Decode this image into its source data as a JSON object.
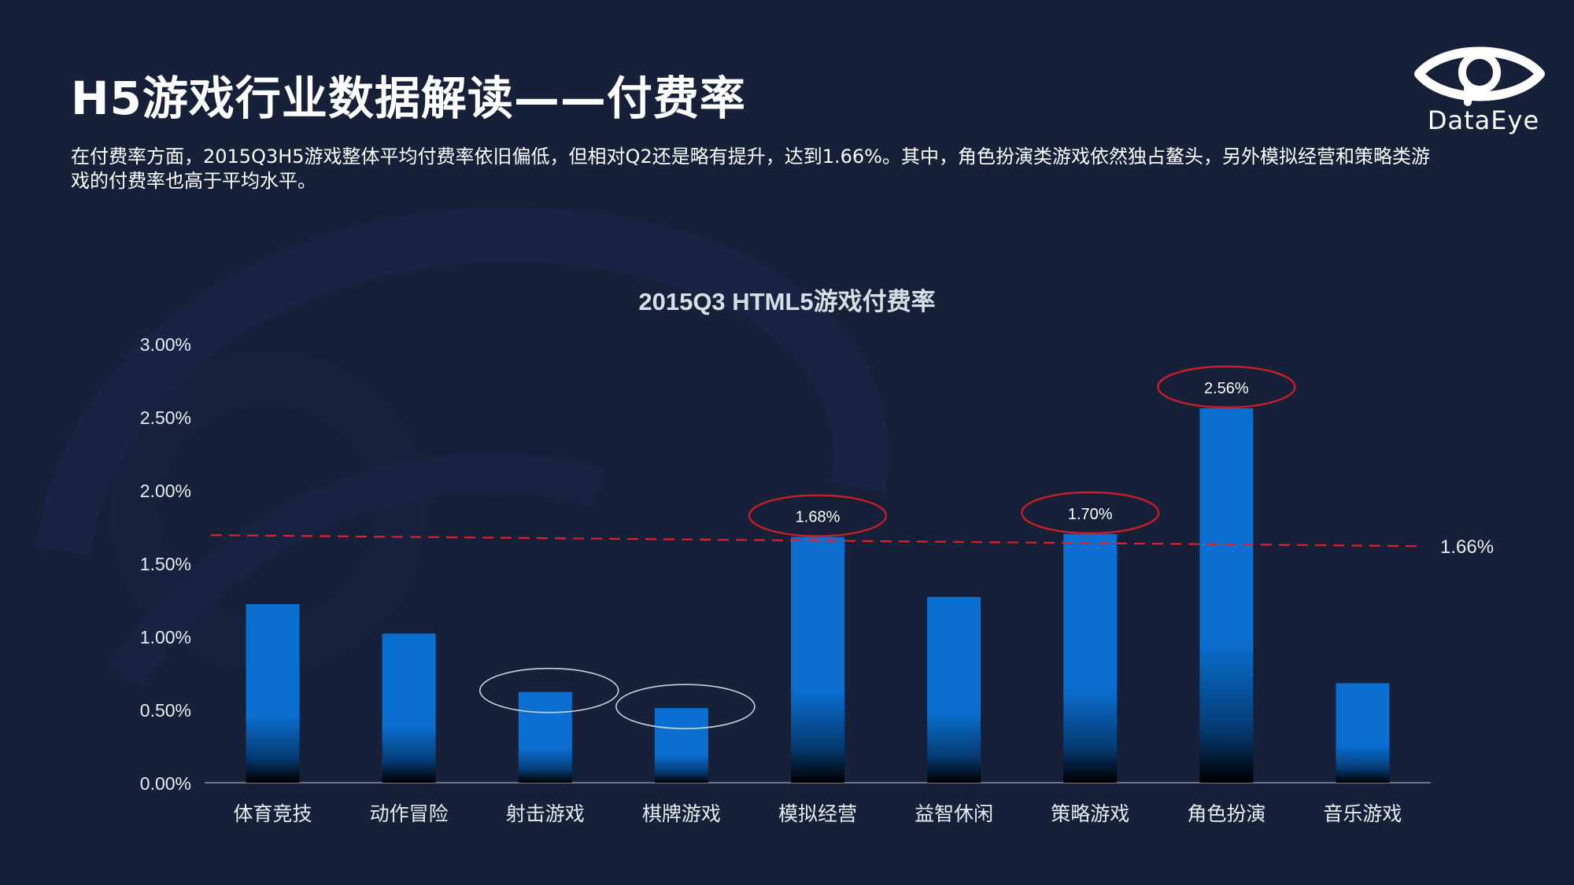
{
  "header": {
    "title": "H5游戏行业数据解读——付费率",
    "description": "在付费率方面，2015Q3H5游戏整体平均付费率依旧偏低，但相对Q2还是略有提升，达到1.66%。其中，角色扮演类游戏依然独占鳌头，另外模拟经营和策略类游戏的付费率也高于平均水平。"
  },
  "logo": {
    "text": "DataEye",
    "icon": "eye-logo-icon"
  },
  "colors": {
    "background": "#162039",
    "bar": "#0a6fd0",
    "average_line": "#e0202a",
    "highlight_ellipse_red": "#c81e28",
    "highlight_ellipse_white": "#c8d0dc",
    "axis_text": "#e8ecf2",
    "title_text": "#d8dde6"
  },
  "chart_data": {
    "type": "bar",
    "title": "2015Q3 HTML5游戏付费率",
    "categories": [
      "体育竞技",
      "动作冒险",
      "射击游戏",
      "棋牌游戏",
      "模拟经营",
      "益智休闲",
      "策略游戏",
      "角色扮演",
      "音乐游戏"
    ],
    "values": [
      1.22,
      1.02,
      0.62,
      0.51,
      1.68,
      1.27,
      1.7,
      2.56,
      0.68
    ],
    "ylim": [
      0,
      3
    ],
    "yticks": [
      "0.00%",
      "0.50%",
      "1.00%",
      "1.50%",
      "2.00%",
      "2.50%",
      "3.00%"
    ],
    "data_labels": {
      "4": "1.68%",
      "6": "1.70%",
      "7": "2.56%"
    },
    "red_highlight_indices": [
      4,
      6,
      7
    ],
    "white_highlight_indices": [
      2,
      3
    ],
    "average": {
      "value": 1.66,
      "label": "1.66%"
    },
    "grid": false,
    "legend": "none"
  }
}
